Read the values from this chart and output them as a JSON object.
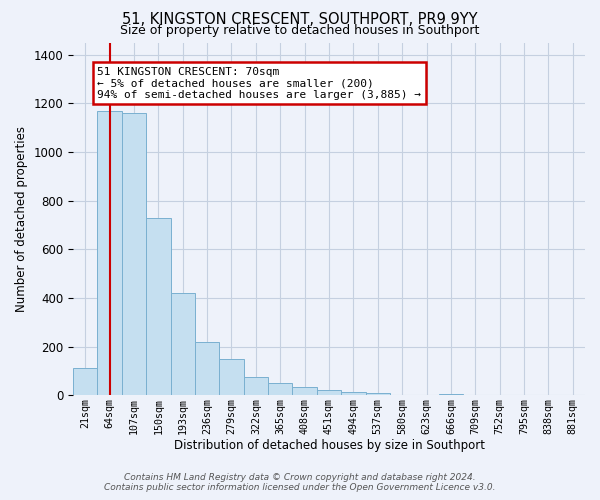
{
  "title": "51, KINGSTON CRESCENT, SOUTHPORT, PR9 9YY",
  "subtitle": "Size of property relative to detached houses in Southport",
  "xlabel": "Distribution of detached houses by size in Southport",
  "ylabel": "Number of detached properties",
  "bar_labels": [
    "21sqm",
    "64sqm",
    "107sqm",
    "150sqm",
    "193sqm",
    "236sqm",
    "279sqm",
    "322sqm",
    "365sqm",
    "408sqm",
    "451sqm",
    "494sqm",
    "537sqm",
    "580sqm",
    "623sqm",
    "666sqm",
    "709sqm",
    "752sqm",
    "795sqm",
    "838sqm",
    "881sqm"
  ],
  "bar_values": [
    110,
    1170,
    1160,
    730,
    420,
    220,
    150,
    75,
    50,
    35,
    20,
    15,
    10,
    0,
    0,
    5,
    0,
    0,
    0,
    0,
    0
  ],
  "bar_color": "#c5dff0",
  "bar_edge_color": "#7ab0d0",
  "vline_x": 1,
  "vline_color": "#cc0000",
  "annotation_line1": "51 KINGSTON CRESCENT: 70sqm",
  "annotation_line2": "← 5% of detached houses are smaller (200)",
  "annotation_line3": "94% of semi-detached houses are larger (3,885) →",
  "box_edge_color": "#cc0000",
  "ylim": [
    0,
    1450
  ],
  "yticks": [
    0,
    200,
    400,
    600,
    800,
    1000,
    1200,
    1400
  ],
  "footer_text": "Contains HM Land Registry data © Crown copyright and database right 2024.\nContains public sector information licensed under the Open Government Licence v3.0.",
  "background_color": "#eef2fa",
  "plot_bg_color": "#eef2fa",
  "grid_color": "#c5d0e0"
}
